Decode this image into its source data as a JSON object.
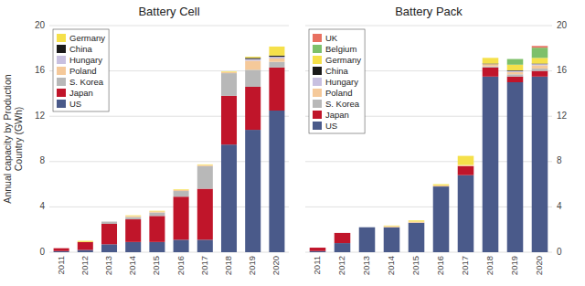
{
  "chart_data": [
    {
      "type": "bar",
      "stacked": true,
      "title": "Battery Cell",
      "y_label": "Annual capacity by Production\nCountry (GWh)",
      "categories": [
        "2011",
        "2012",
        "2013",
        "2014",
        "2015",
        "2016",
        "2017",
        "2018",
        "2019",
        "2020"
      ],
      "series": [
        {
          "name": "US",
          "color": "#4a5a8a",
          "values": [
            0.1,
            0.2,
            0.7,
            0.9,
            0.9,
            1.1,
            1.1,
            9.5,
            10.8,
            12.5
          ]
        },
        {
          "name": "Japan",
          "color": "#c0152a",
          "values": [
            0.25,
            0.7,
            1.8,
            2.0,
            2.3,
            3.8,
            4.5,
            4.3,
            3.8,
            3.8
          ]
        },
        {
          "name": "S. Korea",
          "color": "#b8b8b8",
          "values": [
            0.0,
            0.0,
            0.2,
            0.2,
            0.3,
            0.5,
            2.0,
            2.0,
            1.5,
            0.5
          ]
        },
        {
          "name": "Poland",
          "color": "#f5c99a",
          "values": [
            0.0,
            0.0,
            0.0,
            0.1,
            0.1,
            0.1,
            0.1,
            0.1,
            0.8,
            0.3
          ]
        },
        {
          "name": "Hungary",
          "color": "#c8c0e0",
          "values": [
            0.0,
            0.0,
            0.0,
            0.0,
            0.0,
            0.0,
            0.0,
            0.0,
            0.15,
            0.15
          ]
        },
        {
          "name": "China",
          "color": "#1a1a1a",
          "values": [
            0.0,
            0.0,
            0.0,
            0.0,
            0.0,
            0.0,
            0.0,
            0.0,
            0.1,
            0.1
          ]
        },
        {
          "name": "Germany",
          "color": "#f5e04a",
          "values": [
            0.0,
            0.1,
            0.0,
            0.05,
            0.05,
            0.05,
            0.05,
            0.05,
            0.1,
            0.8
          ]
        }
      ],
      "ylim": [
        0,
        20
      ],
      "yticks": [
        0,
        4,
        8,
        12,
        16,
        20
      ],
      "grid": true,
      "legend": "upper left"
    },
    {
      "type": "bar",
      "stacked": true,
      "title": "Battery Pack",
      "categories": [
        "2011",
        "2012",
        "2013",
        "2014",
        "2015",
        "2016",
        "2017",
        "2018",
        "2019",
        "2020"
      ],
      "series": [
        {
          "name": "US",
          "color": "#4a5a8a",
          "values": [
            0.1,
            0.8,
            2.2,
            2.2,
            2.6,
            5.8,
            6.8,
            15.5,
            15.0,
            15.5
          ]
        },
        {
          "name": "Japan",
          "color": "#c0152a",
          "values": [
            0.3,
            0.9,
            0.0,
            0.0,
            0.0,
            0.0,
            0.8,
            0.8,
            0.5,
            0.5
          ]
        },
        {
          "name": "S. Korea",
          "color": "#b8b8b8",
          "values": [
            0.0,
            0.0,
            0.0,
            0.0,
            0.0,
            0.0,
            0.0,
            0.1,
            0.2,
            0.2
          ]
        },
        {
          "name": "Poland",
          "color": "#f5c99a",
          "values": [
            0.0,
            0.0,
            0.0,
            0.1,
            0.1,
            0.1,
            0.1,
            0.2,
            0.2,
            0.3
          ]
        },
        {
          "name": "Hungary",
          "color": "#c8c0e0",
          "values": [
            0.0,
            0.0,
            0.0,
            0.0,
            0.0,
            0.0,
            0.0,
            0.0,
            0.1,
            0.1
          ]
        },
        {
          "name": "China",
          "color": "#1a1a1a",
          "values": [
            0.0,
            0.0,
            0.0,
            0.0,
            0.0,
            0.0,
            0.0,
            0.05,
            0.05,
            0.05
          ]
        },
        {
          "name": "Germany",
          "color": "#f5e04a",
          "values": [
            0.0,
            0.0,
            0.0,
            0.05,
            0.1,
            0.1,
            0.8,
            0.5,
            0.5,
            0.5
          ]
        },
        {
          "name": "Belgium",
          "color": "#7dc06a",
          "values": [
            0.0,
            0.0,
            0.0,
            0.0,
            0.0,
            0.0,
            0.0,
            0.0,
            0.5,
            0.9
          ]
        },
        {
          "name": "UK",
          "color": "#e87060",
          "values": [
            0.0,
            0.0,
            0.0,
            0.0,
            0.0,
            0.0,
            0.0,
            0.0,
            0.0,
            0.15
          ]
        }
      ],
      "ylim": [
        0,
        20
      ],
      "yticks": [
        0,
        4,
        8,
        12,
        16,
        20
      ],
      "y2lim": [
        0,
        20
      ],
      "y2ticks": [
        0,
        4,
        8,
        12,
        16,
        20
      ],
      "grid": true,
      "legend": "upper left"
    }
  ]
}
